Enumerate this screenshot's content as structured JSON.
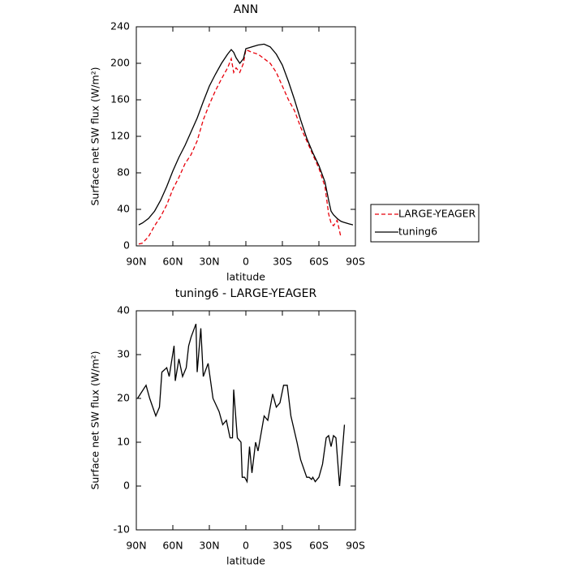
{
  "chart_data": [
    {
      "type": "line",
      "title": "ANN",
      "x_label": "latitude",
      "y_label": "Surface net SW flux (W/m²)",
      "x": [
        88,
        85,
        80,
        75,
        70,
        65,
        60,
        55,
        50,
        45,
        40,
        35,
        30,
        25,
        20,
        15,
        12,
        10,
        8,
        5,
        2,
        0,
        -5,
        -10,
        -15,
        -20,
        -25,
        -30,
        -35,
        -40,
        -45,
        -50,
        -55,
        -60,
        -65,
        -68,
        -70,
        -72,
        -75,
        -78,
        -80,
        -85,
        -88
      ],
      "series": [
        {
          "name": "LARGE-YEAGER",
          "color": "#e8000b",
          "line_style": "dashed",
          "values": [
            2,
            3,
            10,
            22,
            32,
            45,
            62,
            75,
            90,
            100,
            115,
            138,
            155,
            170,
            183,
            195,
            205,
            190,
            195,
            190,
            200,
            215,
            212,
            210,
            205,
            200,
            190,
            175,
            160,
            148,
            130,
            115,
            100,
            85,
            65,
            35,
            25,
            22,
            28,
            10,
            null,
            null,
            null
          ]
        },
        {
          "name": "tuning6",
          "color": "#000000",
          "line_style": "solid",
          "values": [
            23,
            25,
            30,
            38,
            50,
            65,
            82,
            97,
            110,
            125,
            140,
            158,
            175,
            188,
            200,
            210,
            215,
            212,
            206,
            200,
            205,
            216,
            218,
            220,
            221,
            218,
            210,
            198,
            180,
            160,
            138,
            118,
            102,
            88,
            70,
            50,
            38,
            34,
            30,
            27,
            26,
            24,
            23
          ]
        }
      ],
      "xlim": [
        90,
        -90
      ],
      "xticks": [
        {
          "value": 90,
          "label": "90N"
        },
        {
          "value": 60,
          "label": "60N"
        },
        {
          "value": 30,
          "label": "30N"
        },
        0,
        {
          "value": -30,
          "label": "30S"
        },
        {
          "value": -60,
          "label": "60S"
        },
        {
          "value": -90,
          "label": "90S"
        }
      ],
      "ylim": [
        0,
        240
      ],
      "yticks": [
        0,
        40,
        80,
        120,
        160,
        200,
        240
      ],
      "legend": "right"
    },
    {
      "type": "line",
      "title": "tuning6 - LARGE-YEAGER",
      "x_label": "latitude",
      "y_label": "Surface net SW flux (W/m²)",
      "x": [
        89,
        82,
        79,
        74,
        71,
        69,
        65,
        63,
        59,
        58,
        55,
        52,
        49,
        47,
        45,
        41,
        40,
        37,
        35,
        31,
        27,
        22,
        19,
        16,
        13,
        11,
        10,
        7,
        4,
        3,
        1,
        -1,
        -3,
        -5,
        -8,
        -10,
        -15,
        -18,
        -22,
        -25,
        -28,
        -31,
        -34,
        -37,
        -42,
        -45,
        -50,
        -52,
        -54,
        -55,
        -57,
        -60,
        -63,
        -66,
        -68,
        -70,
        -72,
        -74,
        -77,
        -81
      ],
      "values": [
        20,
        23,
        20,
        16,
        18,
        26,
        27,
        25,
        32,
        24,
        29,
        25,
        27,
        32,
        34,
        37,
        26,
        36,
        25,
        28,
        20,
        17,
        14,
        15,
        11,
        11,
        22,
        11,
        10,
        2,
        2,
        1,
        9,
        3,
        10,
        8,
        16,
        15,
        21,
        18,
        19,
        23,
        23,
        16,
        10,
        6,
        2,
        2,
        1.5,
        2,
        1,
        2,
        5,
        11,
        11.5,
        9,
        11.5,
        11,
        0,
        14
      ],
      "color": "#000000",
      "xlim": [
        90,
        -90
      ],
      "xticks": [
        {
          "value": 90,
          "label": "90N"
        },
        {
          "value": 60,
          "label": "60N"
        },
        {
          "value": 30,
          "label": "30N"
        },
        0,
        {
          "value": -30,
          "label": "30S"
        },
        {
          "value": -60,
          "label": "60S"
        },
        {
          "value": -90,
          "label": "90S"
        }
      ],
      "ylim": [
        -10,
        40
      ],
      "yticks": [
        -10,
        0,
        10,
        20,
        30,
        40
      ]
    }
  ]
}
